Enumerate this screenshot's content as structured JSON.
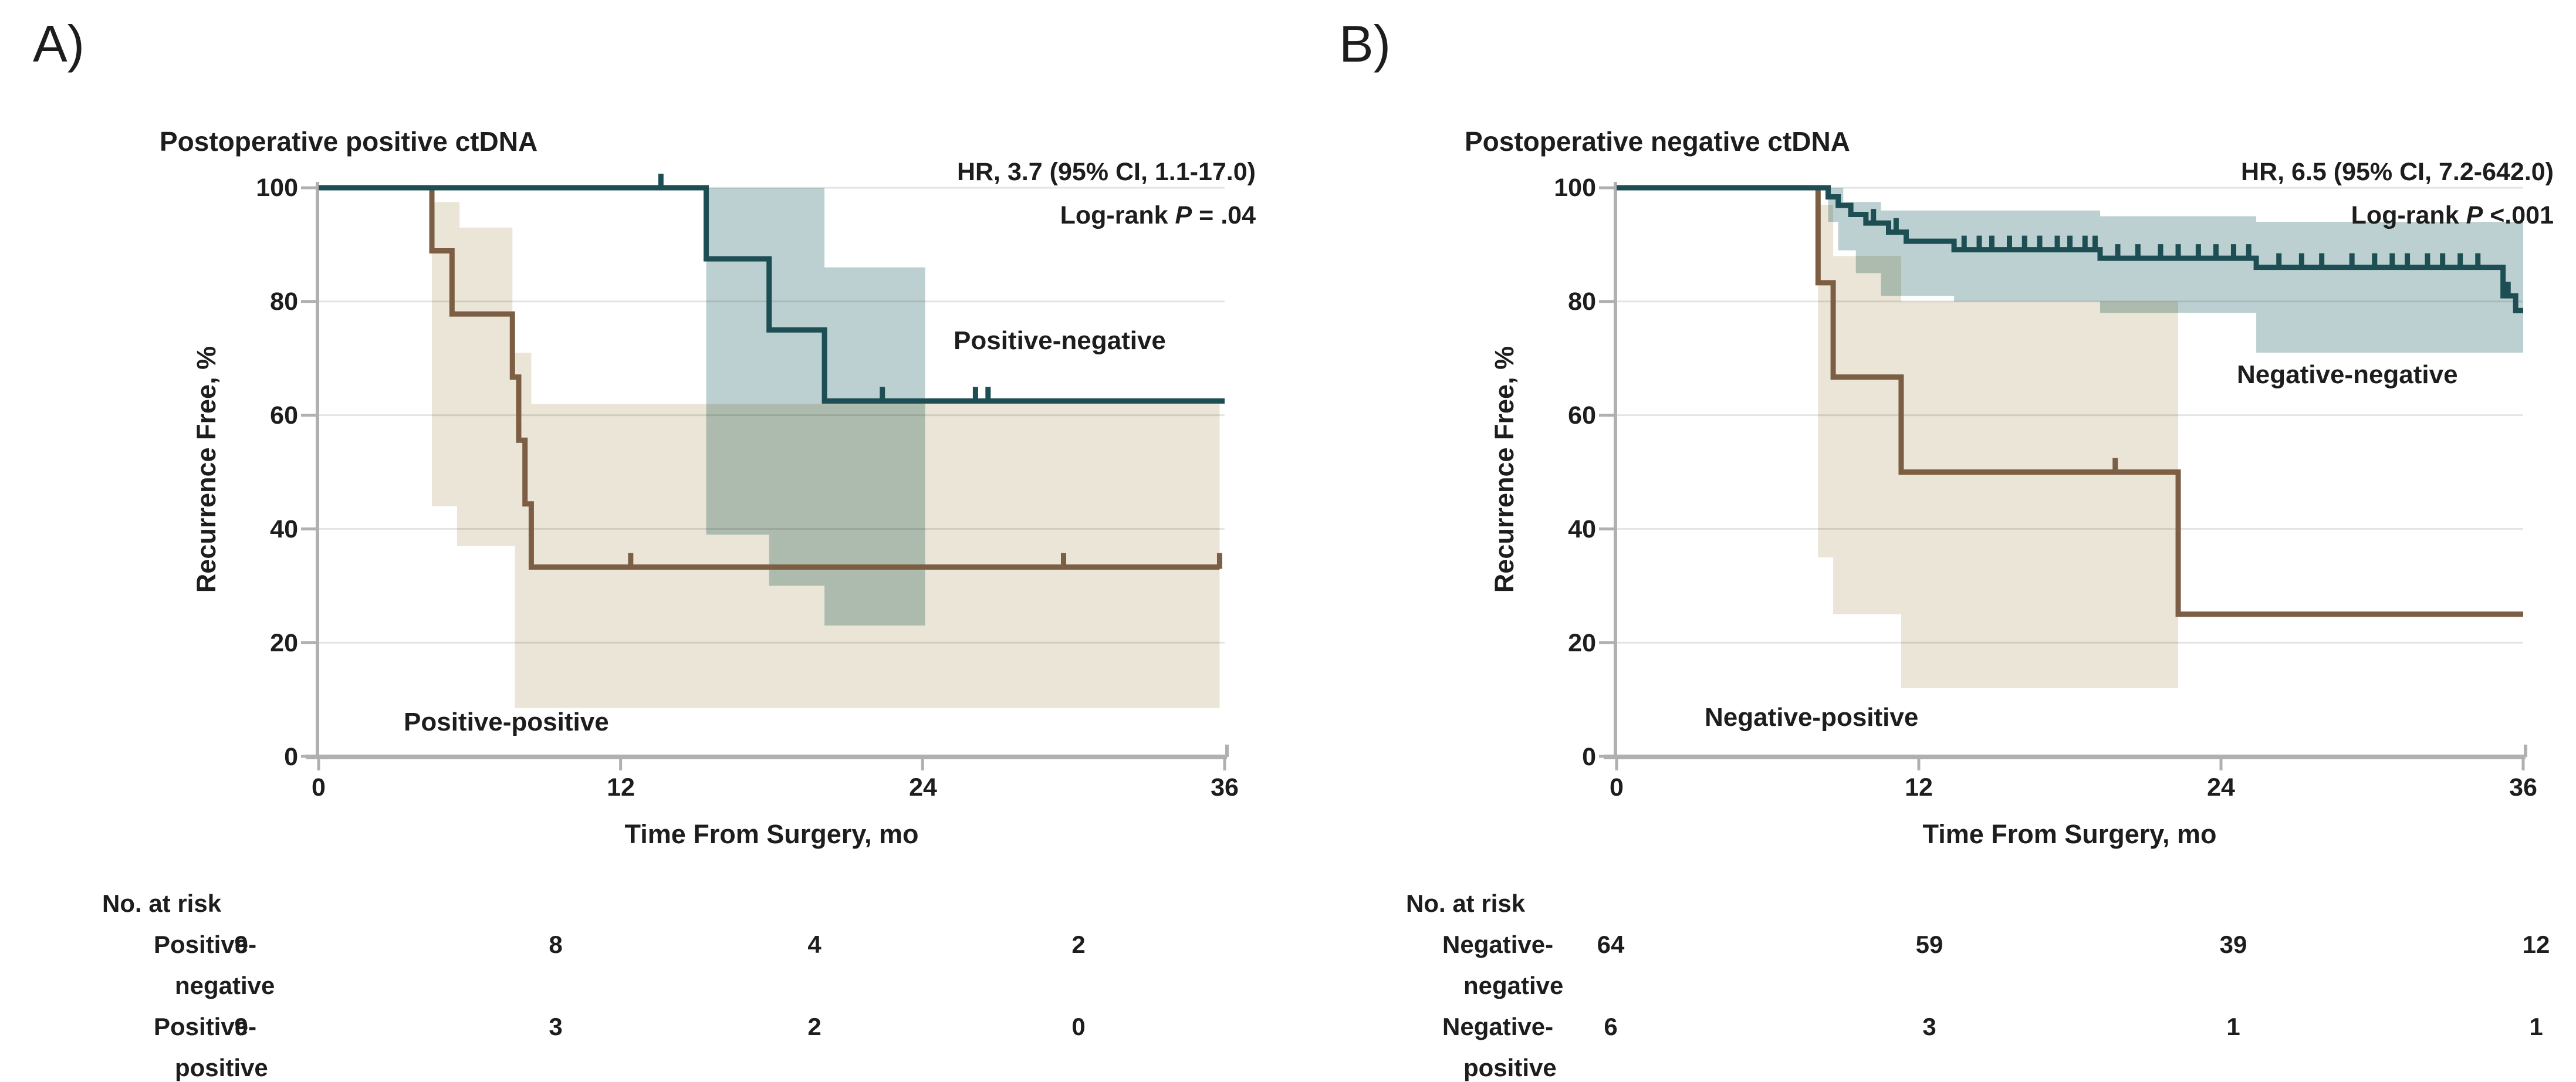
{
  "chart_data": [
    {
      "type": "line",
      "subtype": "kaplan-meier-survival",
      "panel_label": "A)",
      "title": "Postoperative positive ctDNA",
      "annotation": {
        "hr": "HR, 3.7 (95% CI, 1.1-17.0)",
        "logrank_prefix": "Log-rank ",
        "logrank_p": "P",
        "logrank_rest": " = .04"
      },
      "xlabel": "Time From Surgery, mo",
      "ylabel": "Recurrence Free, %",
      "xlim": [
        0,
        36
      ],
      "ylim": [
        0,
        100
      ],
      "xticks": [
        0,
        12,
        24,
        36
      ],
      "yticks": [
        0,
        20,
        40,
        60,
        80,
        100
      ],
      "grid": true,
      "legend_position": "inline-labels",
      "series": [
        {
          "name": "Positive-negative",
          "color": "#1d4e53",
          "ci_color": "#bdd0d1",
          "path": [
            [
              0,
              100
            ],
            [
              15.4,
              100
            ],
            [
              15.4,
              87.5
            ],
            [
              17.9,
              87.5
            ],
            [
              17.9,
              75
            ],
            [
              20.1,
              75
            ],
            [
              20.1,
              62.5
            ],
            [
              36,
              62.5
            ]
          ],
          "censors": [
            [
              13.6,
              100
            ],
            [
              22.4,
              62.5
            ],
            [
              26.1,
              62.5
            ],
            [
              26.6,
              62.5
            ]
          ],
          "ci": [
            [
              15.4,
              100
            ],
            [
              20.1,
              100
            ],
            [
              20.1,
              86
            ],
            [
              24.1,
              86
            ],
            [
              24.1,
              23
            ],
            [
              20.1,
              23
            ],
            [
              20.1,
              30
            ],
            [
              17.9,
              30
            ],
            [
              17.9,
              39
            ],
            [
              15.4,
              39
            ]
          ]
        },
        {
          "name": "Positive-positive",
          "color": "#7b5e43",
          "ci_color": "#eae5d6",
          "path": [
            [
              0,
              100
            ],
            [
              4.5,
              100
            ],
            [
              4.5,
              88.9
            ],
            [
              5.3,
              88.9
            ],
            [
              5.3,
              77.8
            ],
            [
              7.7,
              77.8
            ],
            [
              7.7,
              66.7
            ],
            [
              7.95,
              66.7
            ],
            [
              7.95,
              55.6
            ],
            [
              8.2,
              55.6
            ],
            [
              8.2,
              44.4
            ],
            [
              8.45,
              44.4
            ],
            [
              8.45,
              33.3
            ],
            [
              35.8,
              33.3
            ]
          ],
          "censors": [
            [
              12.4,
              33.3
            ],
            [
              29.6,
              33.3
            ],
            [
              35.8,
              33.3
            ]
          ],
          "ci": [
            [
              4.5,
              97.5
            ],
            [
              5.6,
              97.5
            ],
            [
              5.6,
              93
            ],
            [
              7.7,
              93
            ],
            [
              7.7,
              71
            ],
            [
              8.45,
              71
            ],
            [
              8.45,
              62
            ],
            [
              35.8,
              62
            ],
            [
              35.8,
              8.5
            ],
            [
              7.8,
              8.5
            ],
            [
              7.8,
              37
            ],
            [
              5.5,
              37
            ],
            [
              5.5,
              44
            ],
            [
              4.5,
              44
            ]
          ]
        }
      ],
      "risk_table": {
        "header": "No. at risk",
        "times": [
          0,
          12,
          24,
          36
        ],
        "rows": [
          {
            "label_line1": "Positive-",
            "label_line2": "negative",
            "counts": [
              9,
              8,
              4,
              2
            ]
          },
          {
            "label_line1": "Positive-",
            "label_line2": "positive",
            "counts": [
              9,
              3,
              2,
              0
            ]
          }
        ]
      }
    },
    {
      "type": "line",
      "subtype": "kaplan-meier-survival",
      "panel_label": "B)",
      "title": "Postoperative negative ctDNA",
      "annotation": {
        "hr": "HR, 6.5 (95% CI, 7.2-642.0)",
        "logrank_prefix": "Log-rank ",
        "logrank_p": "P",
        "logrank_rest": " <.001"
      },
      "xlabel": "Time From Surgery, mo",
      "ylabel": "Recurrence Free, %",
      "xlim": [
        0,
        36
      ],
      "ylim": [
        0,
        100
      ],
      "xticks": [
        0,
        12,
        24,
        36
      ],
      "yticks": [
        0,
        20,
        40,
        60,
        80,
        100
      ],
      "grid": true,
      "legend_position": "inline-labels",
      "series": [
        {
          "name": "Negative-negative",
          "color": "#1d4e53",
          "ci_color": "#bdd0d1",
          "path": [
            [
              0,
              100
            ],
            [
              8.4,
              100
            ],
            [
              8.4,
              98.4
            ],
            [
              8.8,
              98.4
            ],
            [
              8.8,
              96.9
            ],
            [
              9.3,
              96.9
            ],
            [
              9.3,
              95.3
            ],
            [
              9.9,
              95.3
            ],
            [
              9.9,
              93.8
            ],
            [
              10.8,
              93.8
            ],
            [
              10.8,
              92.2
            ],
            [
              11.5,
              92.2
            ],
            [
              11.5,
              90.6
            ],
            [
              13.4,
              90.6
            ],
            [
              13.4,
              89.1
            ],
            [
              19.2,
              89.1
            ],
            [
              19.2,
              87.6
            ],
            [
              25.4,
              87.6
            ],
            [
              25.4,
              86
            ],
            [
              35.2,
              86
            ],
            [
              35.2,
              81
            ],
            [
              35.7,
              81
            ],
            [
              35.7,
              78.4
            ],
            [
              36,
              78.4
            ]
          ],
          "censors": [
            [
              10.2,
              93.8
            ],
            [
              11.1,
              92.2
            ],
            [
              13.8,
              89.1
            ],
            [
              14.4,
              89.1
            ],
            [
              14.9,
              89.1
            ],
            [
              15.6,
              89.1
            ],
            [
              16.2,
              89.1
            ],
            [
              16.8,
              89.1
            ],
            [
              17.5,
              89.1
            ],
            [
              18.0,
              89.1
            ],
            [
              18.6,
              89.1
            ],
            [
              19.0,
              89.1
            ],
            [
              19.9,
              87.6
            ],
            [
              20.7,
              87.6
            ],
            [
              21.6,
              87.6
            ],
            [
              22.3,
              87.6
            ],
            [
              23.1,
              87.6
            ],
            [
              23.8,
              87.6
            ],
            [
              24.5,
              87.6
            ],
            [
              25.1,
              87.6
            ],
            [
              26.3,
              86
            ],
            [
              27.2,
              86
            ],
            [
              28.0,
              86
            ],
            [
              29.2,
              86
            ],
            [
              30.1,
              86
            ],
            [
              30.8,
              86
            ],
            [
              31.4,
              86
            ],
            [
              32.2,
              86
            ],
            [
              32.8,
              86
            ],
            [
              33.5,
              86
            ],
            [
              34.2,
              86
            ],
            [
              35.4,
              81
            ]
          ],
          "ci": [
            [
              8.4,
              100
            ],
            [
              9.0,
              100
            ],
            [
              9.0,
              97.5
            ],
            [
              10.5,
              97.5
            ],
            [
              10.5,
              96
            ],
            [
              19.2,
              96
            ],
            [
              19.2,
              95
            ],
            [
              25.4,
              95
            ],
            [
              25.4,
              94
            ],
            [
              36,
              94
            ],
            [
              36,
              71
            ],
            [
              25.4,
              71
            ],
            [
              25.4,
              78
            ],
            [
              19.2,
              78
            ],
            [
              19.2,
              80
            ],
            [
              13.4,
              80
            ],
            [
              13.4,
              81
            ],
            [
              10.5,
              81
            ],
            [
              10.5,
              85
            ],
            [
              9.5,
              85
            ],
            [
              9.5,
              89
            ],
            [
              8.8,
              89
            ],
            [
              8.8,
              94
            ],
            [
              8.4,
              94
            ]
          ]
        },
        {
          "name": "Negative-positive",
          "color": "#7b5e43",
          "ci_color": "#eae5d6",
          "path": [
            [
              0,
              100
            ],
            [
              8.0,
              100
            ],
            [
              8.0,
              83.3
            ],
            [
              8.6,
              83.3
            ],
            [
              8.6,
              66.7
            ],
            [
              11.3,
              66.7
            ],
            [
              11.3,
              50
            ],
            [
              22.3,
              50
            ],
            [
              22.3,
              25
            ],
            [
              36,
              25
            ]
          ],
          "censors": [
            [
              19.8,
              50
            ]
          ],
          "ci": [
            [
              8.0,
              97
            ],
            [
              8.6,
              97
            ],
            [
              8.6,
              88
            ],
            [
              11.3,
              88
            ],
            [
              11.3,
              80
            ],
            [
              22.3,
              80
            ],
            [
              22.3,
              12
            ],
            [
              11.3,
              12
            ],
            [
              11.3,
              25
            ],
            [
              8.6,
              25
            ],
            [
              8.6,
              35
            ],
            [
              8.0,
              35
            ]
          ]
        }
      ],
      "risk_table": {
        "header": "No. at risk",
        "times": [
          0,
          12,
          24,
          36
        ],
        "rows": [
          {
            "label_line1": "Negative-",
            "label_line2": "negative",
            "counts": [
              64,
              59,
              39,
              12
            ]
          },
          {
            "label_line1": "Negative-",
            "label_line2": "positive",
            "counts": [
              6,
              3,
              1,
              1
            ]
          }
        ]
      }
    }
  ]
}
